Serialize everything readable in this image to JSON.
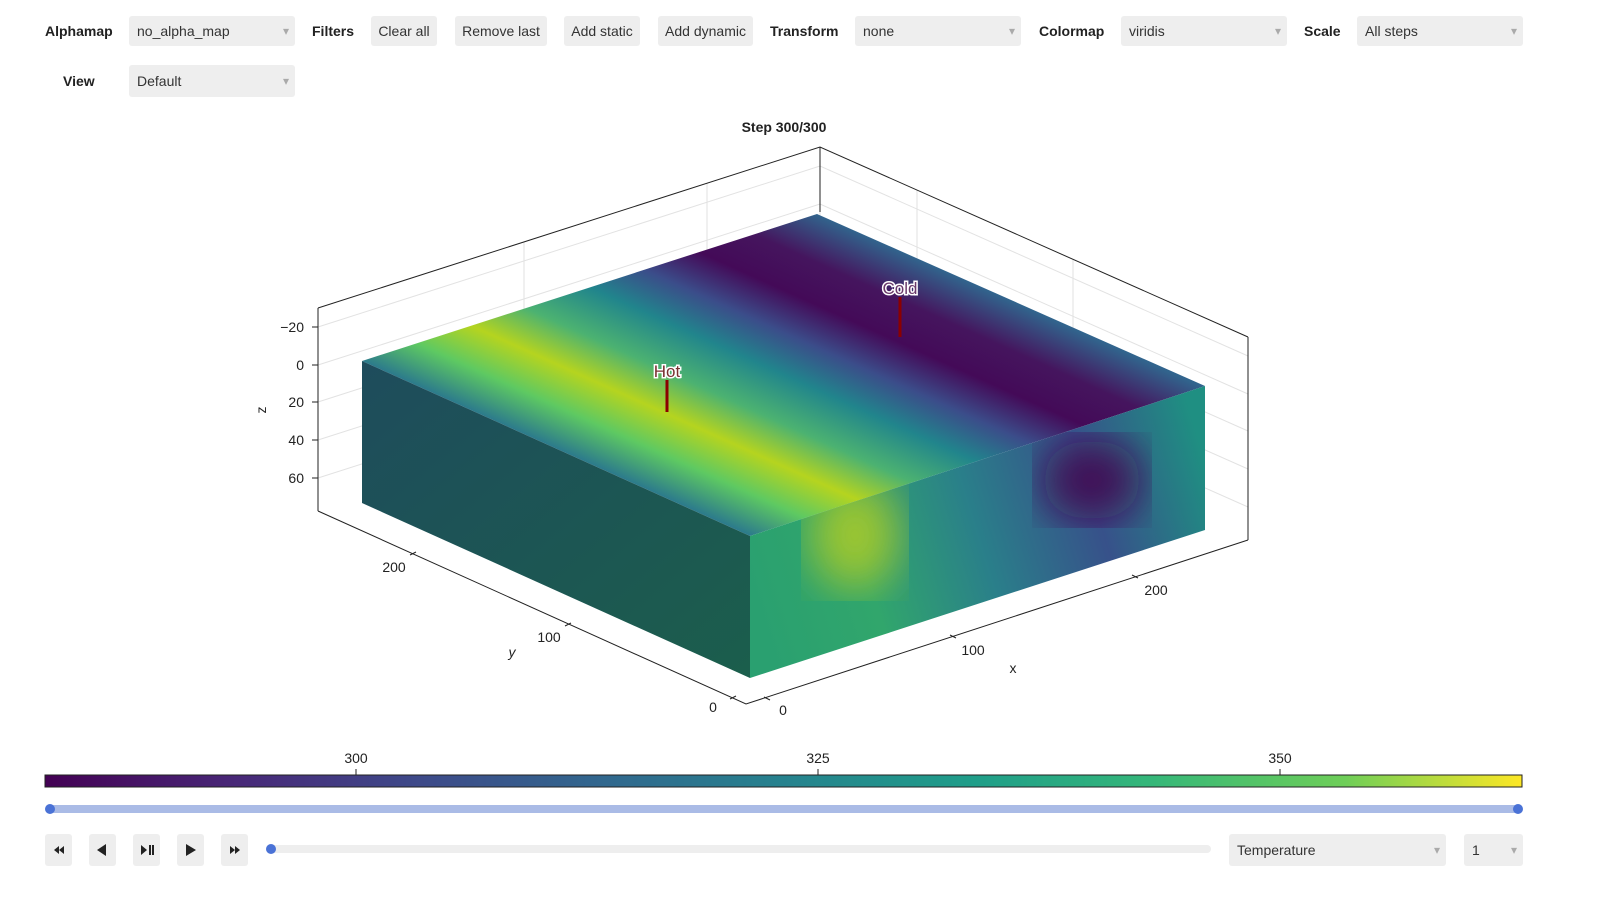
{
  "toolbar": {
    "alphamap": {
      "label": "Alphamap",
      "value": "no_alpha_map"
    },
    "filters": {
      "label": "Filters",
      "buttons": [
        "Clear all",
        "Remove last",
        "Add static",
        "Add dynamic"
      ]
    },
    "transform": {
      "label": "Transform",
      "value": "none"
    },
    "colormap": {
      "label": "Colormap",
      "value": "viridis"
    },
    "scale": {
      "label": "Scale",
      "value": "All steps"
    },
    "view": {
      "label": "View",
      "value": "Default"
    }
  },
  "plot": {
    "title": "Step 300/300",
    "z_axis": {
      "label": "z",
      "ticks": [
        "−20",
        "0",
        "20",
        "40",
        "60"
      ]
    },
    "y_axis": {
      "label": "y",
      "ticks": [
        "200",
        "100",
        "0"
      ]
    },
    "x_axis": {
      "label": "x",
      "ticks": [
        "0",
        "100",
        "200"
      ]
    },
    "annotations": [
      "Hot",
      "Cold"
    ]
  },
  "colorbar": {
    "ticks": [
      "300",
      "325",
      "350"
    ]
  },
  "player": {
    "field": "Temperature",
    "index": "1"
  }
}
